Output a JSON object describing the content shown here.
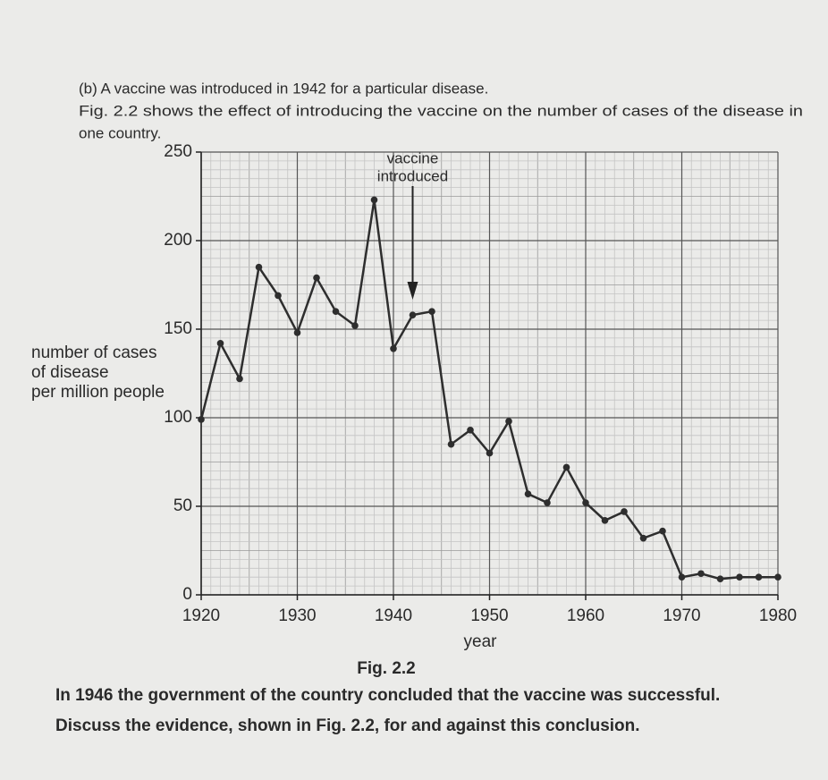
{
  "question": {
    "intro": [
      "(b) A vaccine was introduced in 1942 for a particular disease.",
      "Fig. 2.2 shows the effect of introducing the vaccine on the number of cases of the disease in",
      "one country."
    ],
    "caption": "Fig. 2.2",
    "prompt": [
      "In 1946 the government of the country concluded that the vaccine was successful.",
      "Discuss the evidence, shown in Fig. 2.2, for and against this conclusion."
    ]
  },
  "chart_data": {
    "type": "line",
    "x_label": "year",
    "y_label": [
      "number of cases",
      "of disease",
      "per million people"
    ],
    "x": [
      1920,
      1922,
      1924,
      1926,
      1928,
      1930,
      1932,
      1934,
      1936,
      1938,
      1940,
      1942,
      1944,
      1946,
      1948,
      1950,
      1952,
      1954,
      1956,
      1958,
      1960,
      1962,
      1964,
      1966,
      1968,
      1970,
      1972,
      1974,
      1976,
      1978,
      1980
    ],
    "series": [
      {
        "color": "#2e2e2e",
        "values": [
          99,
          142,
          122,
          185,
          169,
          148,
          179,
          160,
          152,
          223,
          139,
          158,
          160,
          85,
          93,
          80,
          98,
          57,
          52,
          72,
          52,
          42,
          47,
          32,
          36,
          10,
          12,
          9,
          10,
          10,
          10
        ]
      }
    ],
    "xlim": [
      1920,
      1980
    ],
    "xticks": [
      1920,
      1930,
      1940,
      1950,
      1960,
      1970,
      1980
    ],
    "ylim": [
      0,
      250
    ],
    "yticks": [
      0,
      50,
      100,
      150,
      200,
      250
    ],
    "grid": true,
    "annotation": {
      "text": [
        "vaccine",
        "introduced"
      ],
      "x": 1942
    }
  }
}
